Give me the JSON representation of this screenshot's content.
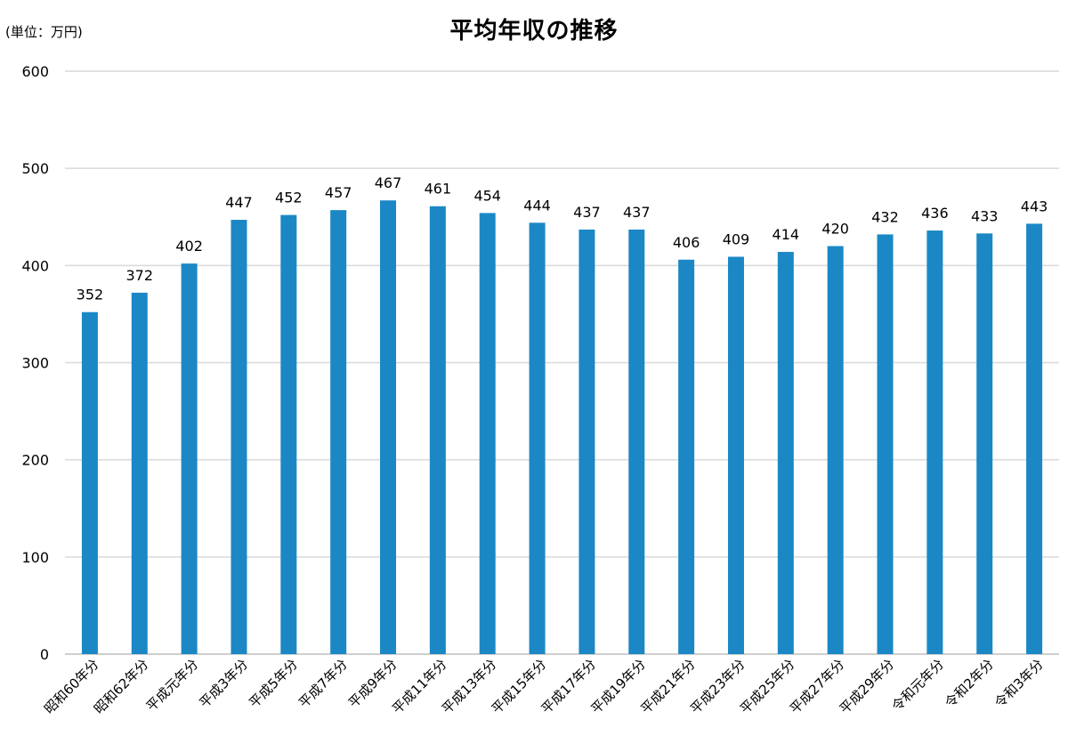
{
  "chart_data": {
    "type": "bar",
    "title": "平均年収の推移",
    "unit_label": "(単位：万円)",
    "categories": [
      "昭和60年分",
      "昭和62年分",
      "平成元年分",
      "平成3年分",
      "平成5年分",
      "平成7年分",
      "平成9年分",
      "平成11年分",
      "平成13年分",
      "平成15年分",
      "平成17年分",
      "平成19年分",
      "平成21年分",
      "平成23年分",
      "平成25年分",
      "平成27年分",
      "平成29年分",
      "令和元年分",
      "令和2年分",
      "令和3年分"
    ],
    "values": [
      352,
      372,
      402,
      447,
      452,
      457,
      467,
      461,
      454,
      444,
      437,
      437,
      406,
      409,
      414,
      420,
      432,
      436,
      433,
      443
    ],
    "ylim": [
      0,
      600
    ],
    "yticks": [
      0,
      100,
      200,
      300,
      400,
      500,
      600
    ],
    "grid": true,
    "bar_color": "#1b88c5",
    "grid_color": "#d9d9d9",
    "axis_color": "#bfbfbf"
  }
}
